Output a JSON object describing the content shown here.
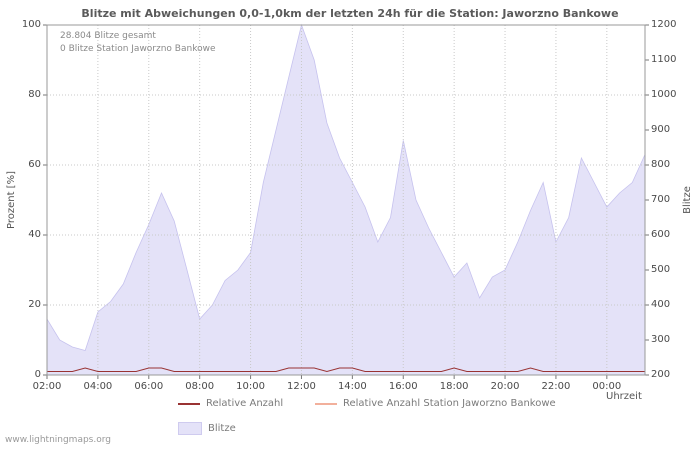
{
  "title": "Blitze mit Abweichungen 0,0-1,0km der letzten 24h für die Station: Jaworzno Bankowe",
  "annotations": {
    "total": "28.804 Blitze gesamt",
    "station": "0 Blitze Station Jaworzno Bankowe"
  },
  "watermark": "www.lightningmaps.org",
  "legend": [
    {
      "label": "Relative Anzahl",
      "color": "#993333",
      "type": "line"
    },
    {
      "label": "Relative Anzahl Station Jaworzno Bankowe",
      "color": "#f2b09c",
      "type": "line"
    },
    {
      "label": "Blitze",
      "color": "#e4e2f8",
      "type": "area"
    }
  ],
  "chart_data": {
    "type": "area",
    "title": "Blitze mit Abweichungen 0,0-1,0km der letzten 24h für die Station: Jaworzno Bankowe",
    "xlabel": "Uhrzeit",
    "ylabel_left": "Prozent  [%]",
    "ylabel_right": "Blitze",
    "grid": true,
    "legend_position": "bottom",
    "ylim_left": [
      0,
      100
    ],
    "ylim_right": [
      200,
      1200
    ],
    "y_left_ticks": [
      0,
      20,
      40,
      60,
      80,
      100
    ],
    "y_right_ticks": [
      200,
      300,
      400,
      500,
      600,
      700,
      800,
      900,
      1000,
      1100,
      1200
    ],
    "x_ticks": [
      "02:00",
      "04:00",
      "06:00",
      "08:00",
      "10:00",
      "12:00",
      "14:00",
      "16:00",
      "18:00",
      "20:00",
      "22:00",
      "00:00"
    ],
    "x": [
      "02:00",
      "02:30",
      "03:00",
      "03:30",
      "04:00",
      "04:30",
      "05:00",
      "05:30",
      "06:00",
      "06:30",
      "07:00",
      "07:30",
      "08:00",
      "08:30",
      "09:00",
      "09:30",
      "10:00",
      "10:30",
      "11:00",
      "11:30",
      "12:00",
      "12:30",
      "13:00",
      "13:30",
      "14:00",
      "14:30",
      "15:00",
      "15:30",
      "16:00",
      "16:30",
      "17:00",
      "17:30",
      "18:00",
      "18:30",
      "19:00",
      "19:30",
      "20:00",
      "20:30",
      "21:00",
      "21:30",
      "22:00",
      "22:30",
      "23:00",
      "23:30",
      "00:00",
      "00:30",
      "01:00",
      "01:30"
    ],
    "series": [
      {
        "name": "Blitze",
        "unit": "Prozent",
        "color": "#e4e2f8",
        "stroke": "#c6c2ee",
        "values": [
          16,
          10,
          8,
          7,
          18,
          21,
          26,
          35,
          43,
          52,
          44,
          30,
          16,
          20,
          27,
          30,
          35,
          55,
          70,
          85,
          100,
          90,
          72,
          62,
          55,
          48,
          38,
          45,
          67,
          50,
          42,
          35,
          28,
          32,
          22,
          28,
          30,
          38,
          47,
          55,
          38,
          45,
          62,
          55,
          48,
          52,
          55,
          63
        ]
      },
      {
        "name": "Relative Anzahl",
        "unit": "Prozent",
        "color": "#993333",
        "values": [
          1,
          1,
          1,
          2,
          1,
          1,
          1,
          1,
          2,
          2,
          1,
          1,
          1,
          1,
          1,
          1,
          1,
          1,
          1,
          2,
          2,
          2,
          1,
          2,
          2,
          1,
          1,
          1,
          1,
          1,
          1,
          1,
          2,
          1,
          1,
          1,
          1,
          1,
          2,
          1,
          1,
          1,
          1,
          1,
          1,
          1,
          1,
          1
        ]
      },
      {
        "name": "Relative Anzahl Station Jaworzno Bankowe",
        "unit": "Prozent",
        "color": "#f2b09c",
        "values": [
          0,
          0,
          0,
          0,
          0,
          0,
          0,
          0,
          0,
          0,
          0,
          0,
          0,
          0,
          0,
          0,
          0,
          0,
          0,
          0,
          0,
          0,
          0,
          0,
          0,
          0,
          0,
          0,
          0,
          0,
          0,
          0,
          0,
          0,
          0,
          0,
          0,
          0,
          0,
          0,
          0,
          0,
          0,
          0,
          0,
          0,
          0,
          0
        ]
      }
    ]
  }
}
